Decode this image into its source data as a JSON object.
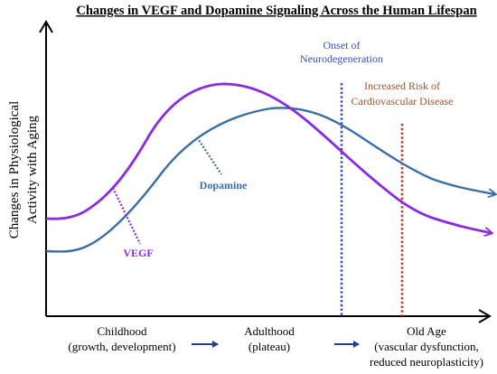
{
  "title": "Changes in VEGF and Dopamine Signaling Across the Human Lifespan",
  "y_axis_label": [
    "Changes in Physiological",
    "Activity with Aging"
  ],
  "curves": [
    {
      "name": "VEGF",
      "color": "#8a2be2"
    },
    {
      "name": "Dopamine",
      "color": "#3a6ea5"
    }
  ],
  "events": [
    {
      "label": [
        "Onset of",
        "Neurodegeneration"
      ],
      "color": "#3b52b5"
    },
    {
      "label": [
        "Increased Risk of",
        "Cardiovascular Disease"
      ],
      "color": "#a0522d"
    }
  ],
  "stages": [
    {
      "label": [
        "Childhood",
        "(growth, development)"
      ]
    },
    {
      "label": [
        "Adulthood",
        "(plateau)"
      ]
    },
    {
      "label": [
        "Old Age",
        "(vascular dysfunction,",
        "reduced neuroplasticity)"
      ]
    }
  ],
  "colors": {
    "axis": "#000000",
    "stage_arrow": "#1f3f9c",
    "event_line_1": "#3b52b5",
    "event_line_2": "#c0392b"
  }
}
